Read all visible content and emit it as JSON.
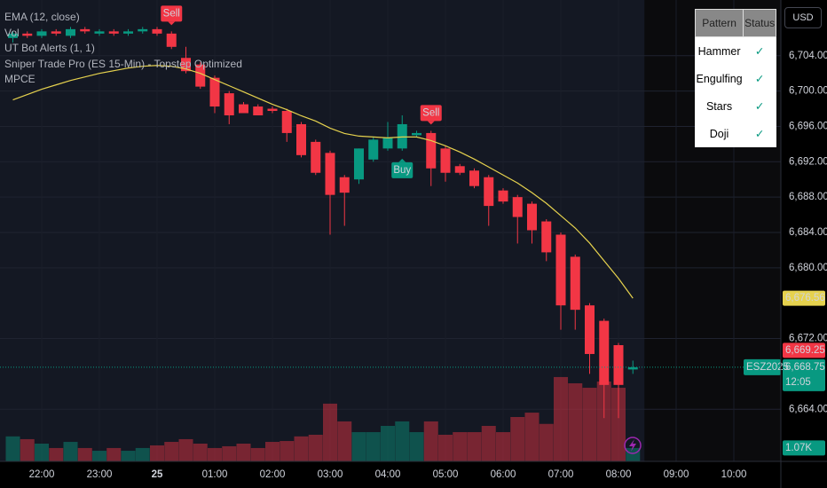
{
  "chart_data": {
    "type": "candlestick",
    "indicators": [
      "EMA (12, close)",
      "Vol",
      "UT Bot Alerts (1, 1)",
      "Sniper Trade Pro (ES 15-Min) - Topstep Optimized",
      "MPCE"
    ],
    "currency": "USD",
    "categories": [
      null,
      null,
      "22:00",
      null,
      null,
      null,
      "23:00",
      null,
      null,
      null,
      "25",
      null,
      null,
      null,
      "01:00",
      null,
      null,
      null,
      "02:00",
      null,
      null,
      null,
      "03:00",
      null,
      null,
      null,
      "04:00",
      null,
      null,
      null,
      "05:00",
      null,
      null,
      null,
      "06:00",
      null,
      null,
      null,
      "07:00",
      null,
      null,
      null,
      "08:00",
      null,
      null,
      null,
      "09:00",
      null,
      null,
      null,
      "10:00",
      null,
      null
    ],
    "candles": {
      "up_color": "#089981",
      "down_color": "#f23645",
      "open": [
        6706.0,
        6706.5,
        6706.25,
        6706.75,
        6706.25,
        6707.0,
        6706.5,
        6706.75,
        6706.5,
        6706.75,
        6707.0,
        6706.5,
        6703.75,
        6703.0,
        6701.5,
        6699.75,
        6698.5,
        6698.25,
        6698.0,
        6697.75,
        6696.25,
        6694.25,
        6693.0,
        6690.25,
        6690.0,
        6692.25,
        6693.5,
        6693.5,
        6695.0,
        6695.25,
        6693.5,
        6691.5,
        6691.0,
        6690.25,
        6688.75,
        6688.0,
        6687.25,
        6685.25,
        6683.75,
        6681.25,
        6675.75,
        6674.0,
        6671.25,
        6668.5,
        null,
        null,
        null,
        null,
        null,
        null,
        null,
        null,
        null
      ],
      "high": [
        6706.75,
        6706.75,
        6707.0,
        6707.0,
        6707.25,
        6707.25,
        6707.0,
        6707.0,
        6707.0,
        6707.25,
        6707.25,
        6706.75,
        6705.0,
        6703.25,
        6701.75,
        6700.0,
        6698.75,
        6698.5,
        6698.25,
        6698.0,
        6696.5,
        6694.5,
        6693.25,
        6690.5,
        6693.5,
        6694.75,
        6696.5,
        6697.25,
        6695.5,
        6695.5,
        6693.75,
        6691.75,
        6691.25,
        6690.5,
        6689.0,
        6688.25,
        6687.5,
        6685.5,
        6684.0,
        6681.5,
        6676.0,
        6674.25,
        6671.5,
        6669.5,
        null,
        null,
        null,
        null,
        null,
        null,
        null,
        null,
        null
      ],
      "low": [
        6705.5,
        6706.0,
        6706.0,
        6706.25,
        6706.0,
        6706.5,
        6706.25,
        6706.25,
        6706.25,
        6706.5,
        6706.25,
        6704.75,
        6702.0,
        6700.25,
        6697.5,
        6696.25,
        6697.5,
        6697.25,
        6697.5,
        6694.25,
        6692.5,
        6690.5,
        6683.75,
        6684.75,
        6689.5,
        6692.0,
        6693.25,
        6693.25,
        6694.75,
        6689.25,
        6689.75,
        6690.5,
        6689.0,
        6684.75,
        6687.25,
        6682.75,
        6682.75,
        6680.75,
        6673.0,
        6673.0,
        6668.0,
        6663.0,
        6663.0,
        6668.0,
        null,
        null,
        null,
        null,
        null,
        null,
        null,
        null,
        null
      ],
      "close": [
        6706.5,
        6706.25,
        6706.75,
        6706.5,
        6707.0,
        6706.75,
        6706.75,
        6706.5,
        6706.75,
        6707.0,
        6706.5,
        6705.0,
        6702.25,
        6700.5,
        6698.25,
        6697.25,
        6697.5,
        6697.25,
        6697.75,
        6695.25,
        6692.75,
        6690.75,
        6688.25,
        6688.5,
        6693.5,
        6694.5,
        6694.75,
        6696.25,
        6695.25,
        6691.25,
        6690.75,
        6690.75,
        6689.25,
        6687.0,
        6687.5,
        6685.75,
        6684.25,
        6681.75,
        6675.75,
        6675.25,
        6670.25,
        6666.75,
        6666.75,
        6668.75,
        null,
        null,
        null,
        null,
        null,
        null,
        null,
        null,
        null
      ]
    },
    "ema": {
      "color": "#e6d24e",
      "last_value_label": "6,676.56",
      "values": [
        6699.0,
        6699.6,
        6700.2,
        6700.7,
        6701.2,
        6701.6,
        6702.0,
        6702.3,
        6702.6,
        6702.8,
        6702.9,
        6702.8,
        6702.5,
        6702.0,
        6701.3,
        6700.6,
        6699.9,
        6699.2,
        6698.5,
        6697.9,
        6697.2,
        6696.6,
        6695.8,
        6695.2,
        6694.9,
        6694.8,
        6694.7,
        6694.8,
        6694.8,
        6694.4,
        6693.8,
        6693.1,
        6692.3,
        6691.4,
        6690.5,
        6689.6,
        6688.5,
        6687.3,
        6685.9,
        6684.5,
        6682.8,
        6680.8,
        6678.8,
        6676.56,
        null,
        null,
        null,
        null,
        null,
        null,
        null,
        null,
        null
      ]
    },
    "volume": {
      "ylim": [
        0,
        7100
      ],
      "last_value_label": "1.07K",
      "values": [
        2000,
        1780,
        1420,
        1070,
        1560,
        1070,
        850,
        1070,
        850,
        1070,
        1280,
        1560,
        1780,
        1420,
        1070,
        1210,
        1420,
        1070,
        1560,
        1630,
        2000,
        2130,
        4620,
        3200,
        2340,
        2340,
        2840,
        3200,
        2340,
        3200,
        2130,
        2340,
        2340,
        2840,
        2340,
        3550,
        3900,
        3000,
        6750,
        6250,
        5890,
        6390,
        5890,
        1070,
        null,
        null,
        null,
        null,
        null,
        null,
        null,
        null,
        null
      ]
    },
    "ylim": [
      6658.1,
      6710.3
    ],
    "yticks": [
      {
        "value": 6664,
        "label": "6,664.00"
      },
      {
        "value": 6672,
        "label": "6,672.00"
      },
      {
        "value": 6680,
        "label": "6,680.00"
      },
      {
        "value": 6684,
        "label": "6,684.00"
      },
      {
        "value": 6688,
        "label": "6,688.00"
      },
      {
        "value": 6692,
        "label": "6,692.00"
      },
      {
        "value": 6696,
        "label": "6,696.00"
      },
      {
        "value": 6700,
        "label": "6,700.00"
      },
      {
        "value": 6704,
        "label": "6,704.00"
      }
    ],
    "grid": true,
    "price_tags": [
      {
        "value": 6669.25,
        "label": "6,669.25",
        "color": "#f23645"
      }
    ],
    "last_price": {
      "symbol": "ESZ2025",
      "value": 6668.75,
      "label": "6,668.75",
      "countdown": "12:05",
      "color": "#089981"
    },
    "signals": [
      {
        "label": "Sell",
        "index": 11,
        "position": "above",
        "color": "#f23645"
      },
      {
        "label": "Buy",
        "index": 27,
        "position": "below",
        "color": "#089981"
      },
      {
        "label": "Sell",
        "index": 29,
        "position": "above",
        "color": "#f23645"
      }
    ],
    "pattern_table": {
      "headers": [
        "Pattern",
        "Status"
      ],
      "rows": [
        [
          "Hammer",
          "✓"
        ],
        [
          "Engulfing",
          "✓"
        ],
        [
          "Stars",
          "✓"
        ],
        [
          "Doji",
          "✓"
        ]
      ]
    }
  }
}
